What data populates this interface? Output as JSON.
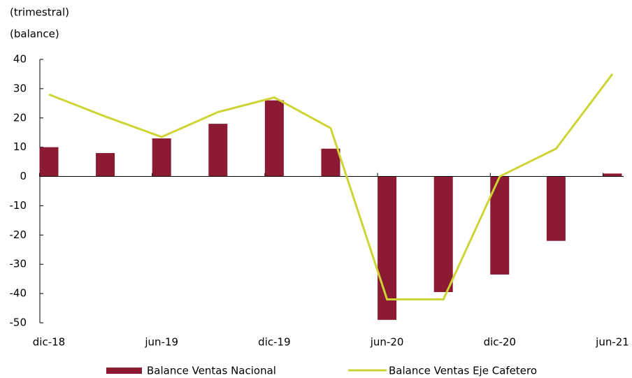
{
  "chart_data": {
    "type": "bar-line",
    "title": "(trimestral)",
    "subtitle": "(balance)",
    "categories": [
      "dic-18",
      null,
      "jun-19",
      null,
      "dic-19",
      null,
      "jun-20",
      null,
      "dic-20",
      null,
      "jun-21"
    ],
    "series": [
      {
        "name": "Balance Ventas Nacional",
        "type": "bar",
        "color": "#8b1a32",
        "values": [
          10,
          8,
          13,
          18,
          26,
          9.5,
          -49,
          -39.5,
          -33.5,
          -22,
          1
        ]
      },
      {
        "name": "Balance Ventas Eje Cafetero",
        "type": "line",
        "color": "#cdd534",
        "values": [
          28,
          20.5,
          13.5,
          22,
          27,
          16.5,
          -42,
          -42,
          0,
          9.5,
          35
        ]
      }
    ],
    "ylim": [
      -50,
      40
    ],
    "yticks": [
      -50,
      -40,
      -30,
      -20,
      -10,
      0,
      10,
      20,
      30,
      40
    ],
    "grid": false
  }
}
